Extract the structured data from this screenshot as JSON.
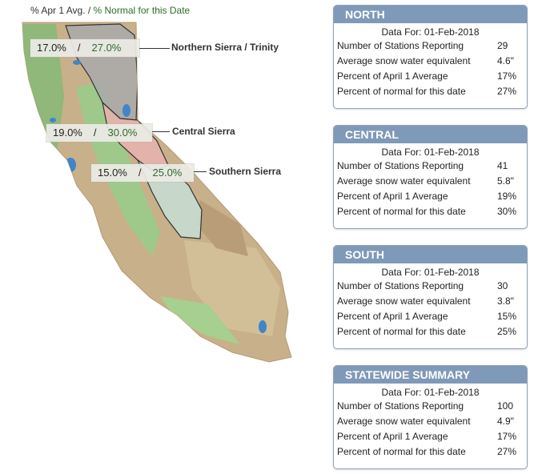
{
  "legend": {
    "apr_label": "% Apr 1 Avg.",
    "separator": " / ",
    "normal_label": "% Normal for this Date"
  },
  "regions": [
    {
      "name": "Northern Sierra / Trinity",
      "apr1": "17.0%",
      "normal": "27.0%"
    },
    {
      "name": "Central Sierra",
      "apr1": "19.0%",
      "normal": "30.0%"
    },
    {
      "name": "Southern Sierra",
      "apr1": "15.0%",
      "normal": "25.0%"
    }
  ],
  "slash": "/",
  "panels": [
    {
      "title": "NORTH",
      "date_text": "Data For: 01-Feb-2018",
      "rows": [
        {
          "label": "Number of Stations Reporting",
          "value": "29"
        },
        {
          "label": "Average snow water equivalent",
          "value": "4.6\""
        },
        {
          "label": "Percent of April 1 Average",
          "value": "17%"
        },
        {
          "label": "Percent of normal for this date",
          "value": "27%"
        }
      ]
    },
    {
      "title": "CENTRAL",
      "date_text": "Data For: 01-Feb-2018",
      "rows": [
        {
          "label": "Number of Stations Reporting",
          "value": "41"
        },
        {
          "label": "Average snow water equivalent",
          "value": "5.8\""
        },
        {
          "label": "Percent of April 1 Average",
          "value": "19%"
        },
        {
          "label": "Percent of normal for this date",
          "value": "30%"
        }
      ]
    },
    {
      "title": "SOUTH",
      "date_text": "Data For: 01-Feb-2018",
      "rows": [
        {
          "label": "Number of Stations Reporting",
          "value": "30"
        },
        {
          "label": "Average snow water equivalent",
          "value": "3.8\""
        },
        {
          "label": "Percent of April 1 Average",
          "value": "15%"
        },
        {
          "label": "Percent of normal for this date",
          "value": "25%"
        }
      ]
    },
    {
      "title": "STATEWIDE SUMMARY",
      "date_text": "Data For: 01-Feb-2018",
      "rows": [
        {
          "label": "Number of Stations Reporting",
          "value": "100"
        },
        {
          "label": "Average snow water equivalent",
          "value": "4.9\""
        },
        {
          "label": "Percent of April 1 Average",
          "value": "17%"
        },
        {
          "label": "Percent of normal for this date",
          "value": "27%"
        }
      ]
    }
  ],
  "colors": {
    "panel_header": "#7f99b8",
    "normal_text": "#2e6b2e",
    "north_region": "#a9a9a9",
    "central_region": "#e6b3ad",
    "south_region": "#c7dcd0",
    "lowland": "#9fc98a",
    "mountain": "#c8b08a",
    "water": "#3f86c9"
  }
}
